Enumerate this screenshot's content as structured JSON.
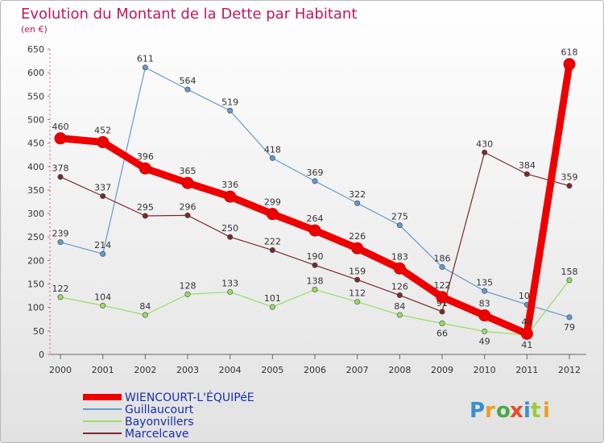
{
  "chart_data": {
    "type": "line",
    "title": "Evolution du Montant de la Dette par Habitant",
    "subtitle": "(en €)",
    "x": [
      "2000",
      "2001",
      "2002",
      "2003",
      "2004",
      "2005",
      "2006",
      "2007",
      "2008",
      "2009",
      "2010",
      "2011",
      "2012"
    ],
    "ylim": [
      0,
      650
    ],
    "yticks": [
      0,
      50,
      100,
      150,
      200,
      250,
      300,
      350,
      400,
      450,
      500,
      550,
      600,
      650
    ],
    "grid": false,
    "legend_position": "bottom-left",
    "series": [
      {
        "name": "WIENCOURT-L'ÉQUIPéE",
        "color": "#ee0000",
        "values": [
          460,
          452,
          396,
          365,
          336,
          299,
          264,
          226,
          183,
          122,
          83,
          44,
          618
        ]
      },
      {
        "name": "Guillaucourt",
        "color": "#6699cc",
        "values": [
          239,
          214,
          611,
          564,
          519,
          418,
          369,
          322,
          275,
          186,
          135,
          106,
          79
        ]
      },
      {
        "name": "Bayonvillers",
        "color": "#99dd66",
        "values": [
          122,
          104,
          84,
          128,
          133,
          101,
          138,
          112,
          84,
          66,
          49,
          41,
          158
        ]
      },
      {
        "name": "Marcelcave",
        "color": "#7a2a2a",
        "values": [
          378,
          337,
          295,
          296,
          250,
          222,
          190,
          159,
          126,
          91,
          430,
          384,
          359
        ]
      }
    ]
  },
  "logo_text": "Proxiti"
}
